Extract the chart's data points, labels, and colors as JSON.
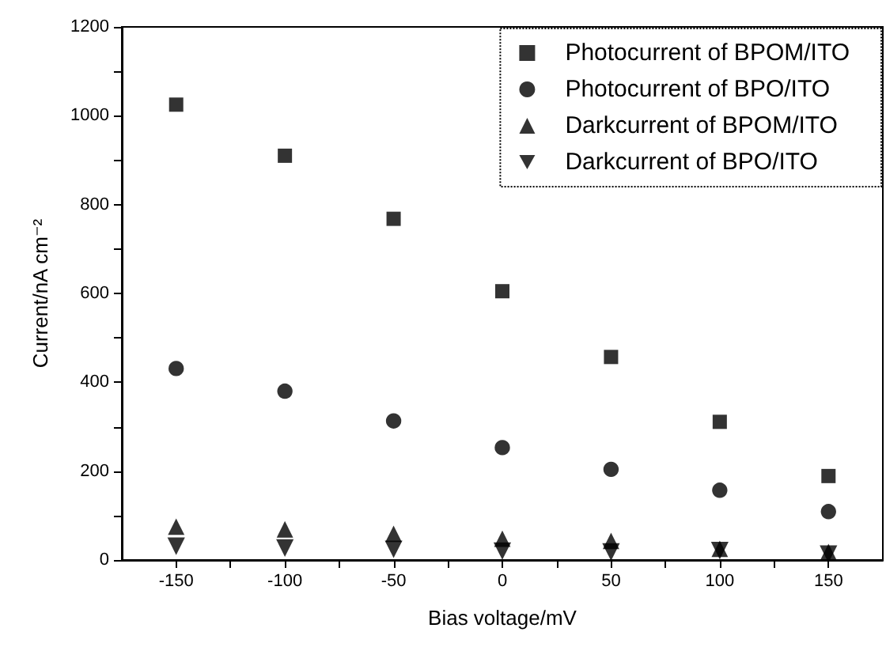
{
  "chart_data": {
    "type": "scatter",
    "xlabel": "Bias voltage/mV",
    "ylabel": "Current/nA cm⁻²",
    "x": [
      -150,
      -100,
      -50,
      0,
      50,
      100,
      150
    ],
    "series": [
      {
        "name": "Photocurrent of BPOM/ITO",
        "color": "#000000",
        "marker": "square",
        "values": [
          1025,
          910,
          768,
          605,
          457,
          311,
          189
        ]
      },
      {
        "name": "Photocurrent of BPO/ITO",
        "color": "#000000",
        "marker": "circle",
        "values": [
          431,
          380,
          313,
          253,
          204,
          157,
          109
        ]
      },
      {
        "name": "Darkcurrent of BPOM/ITO",
        "color": "#000000",
        "marker": "triangle",
        "values": [
          75,
          69,
          59,
          48,
          43,
          25,
          18
        ]
      },
      {
        "name": "Darkcurrent of BPO/ITO",
        "color": "#000000",
        "marker": "triangle-down",
        "values": [
          31,
          27,
          24,
          20,
          18,
          21,
          13
        ]
      }
    ],
    "xlim": [
      -175,
      175
    ],
    "xticks": [
      -150,
      {
        "value": -125,
        "label": null
      },
      -100,
      {
        "value": -75,
        "label": null
      },
      -50,
      {
        "value": -25,
        "label": null
      },
      0,
      {
        "value": 25,
        "label": null
      },
      50,
      {
        "value": 75,
        "label": null
      },
      100,
      {
        "value": 125,
        "label": null
      },
      150
    ],
    "ylim": [
      0,
      1200
    ],
    "yticks": [
      0,
      {
        "value": 100,
        "label": null
      },
      200,
      {
        "value": 300,
        "label": null
      },
      400,
      {
        "value": 500,
        "label": null
      },
      600,
      {
        "value": 700,
        "label": null
      },
      800,
      {
        "value": 900,
        "label": null
      },
      1000,
      {
        "value": 1100,
        "label": null
      },
      1200
    ],
    "grid": false,
    "legend": "top right"
  }
}
